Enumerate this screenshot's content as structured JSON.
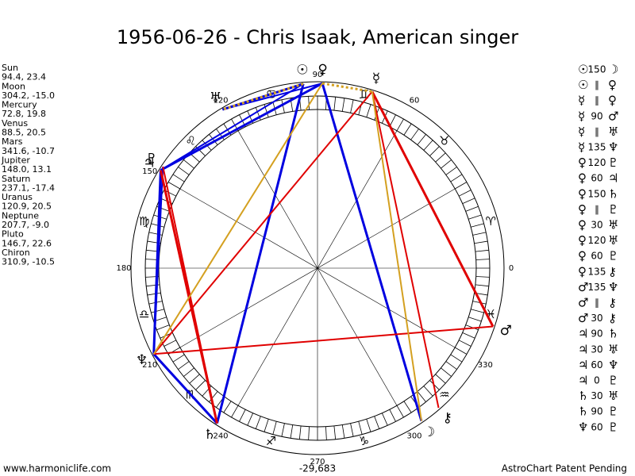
{
  "header": {
    "title": "1956-06-26 - Chris Isaak, American singer"
  },
  "planets": [
    {
      "name": "Sun",
      "glyph": "☉",
      "lon": 94.4,
      "label": "94.4, 23.4"
    },
    {
      "name": "Moon",
      "glyph": "☽",
      "lon": 304.2,
      "label": "304.2, -15.0"
    },
    {
      "name": "Mercury",
      "glyph": "☿",
      "lon": 72.8,
      "label": "72.8, 19.8"
    },
    {
      "name": "Venus",
      "glyph": "♀",
      "lon": 88.5,
      "label": "88.5, 20.5"
    },
    {
      "name": "Mars",
      "glyph": "♂",
      "lon": 341.6,
      "label": "341.6, -10.7"
    },
    {
      "name": "Jupiter",
      "glyph": "♃",
      "lon": 148.0,
      "label": "148.0, 13.1"
    },
    {
      "name": "Saturn",
      "glyph": "♄",
      "lon": 237.1,
      "label": "237.1, -17.4"
    },
    {
      "name": "Uranus",
      "glyph": "♅",
      "lon": 120.9,
      "label": "120.9, 20.5"
    },
    {
      "name": "Neptune",
      "glyph": "♆",
      "lon": 207.7,
      "label": "207.7, -9.0"
    },
    {
      "name": "Pluto",
      "glyph": "♇",
      "lon": 146.7,
      "label": "146.7, 22.6"
    },
    {
      "name": "Chiron",
      "glyph": "⚷",
      "lon": 310.9,
      "label": "310.9, -10.5"
    }
  ],
  "signs": [
    "♈",
    "♉",
    "♊",
    "♋",
    "♌",
    "♍",
    "♎",
    "♏",
    "♐",
    "♑",
    "♒",
    "♓"
  ],
  "degree_labels": [
    0,
    60,
    90,
    120,
    150,
    180,
    210,
    240,
    270,
    300,
    330
  ],
  "aspects": [
    [
      "☉",
      "150",
      "☽"
    ],
    [
      "☉",
      "∥",
      "♀"
    ],
    [
      "☿",
      "∥",
      "♀"
    ],
    [
      "☿",
      "90",
      "♂"
    ],
    [
      "☿",
      "∥",
      "♅"
    ],
    [
      "☿",
      "135",
      "♆"
    ],
    [
      "♀",
      "120",
      "♇"
    ],
    [
      "♀",
      "60",
      "♃"
    ],
    [
      "♀",
      "150",
      "♄"
    ],
    [
      "♀",
      "∥",
      "♇"
    ],
    [
      "♀",
      "30",
      "♅"
    ],
    [
      "♀",
      "120",
      "♅"
    ],
    [
      "♀",
      "60",
      "♇"
    ],
    [
      "♀",
      "135",
      "⚷"
    ],
    [
      "♂",
      "135",
      "♆"
    ],
    [
      "♂",
      "∥",
      "⚷"
    ],
    [
      "♂",
      "30",
      "⚷"
    ],
    [
      "♃",
      "90",
      "♄"
    ],
    [
      "♃",
      "30",
      "♅"
    ],
    [
      "♃",
      "60",
      "♆"
    ],
    [
      "♃",
      "0",
      "♇"
    ],
    [
      "♄",
      "30",
      "♅"
    ],
    [
      "♄",
      "90",
      "♇"
    ],
    [
      "♆",
      "60",
      "♇"
    ]
  ],
  "footer": {
    "left": "www.harmoniclife.com",
    "center": "-29,683",
    "right": "AstroChart Patent Pending"
  }
}
